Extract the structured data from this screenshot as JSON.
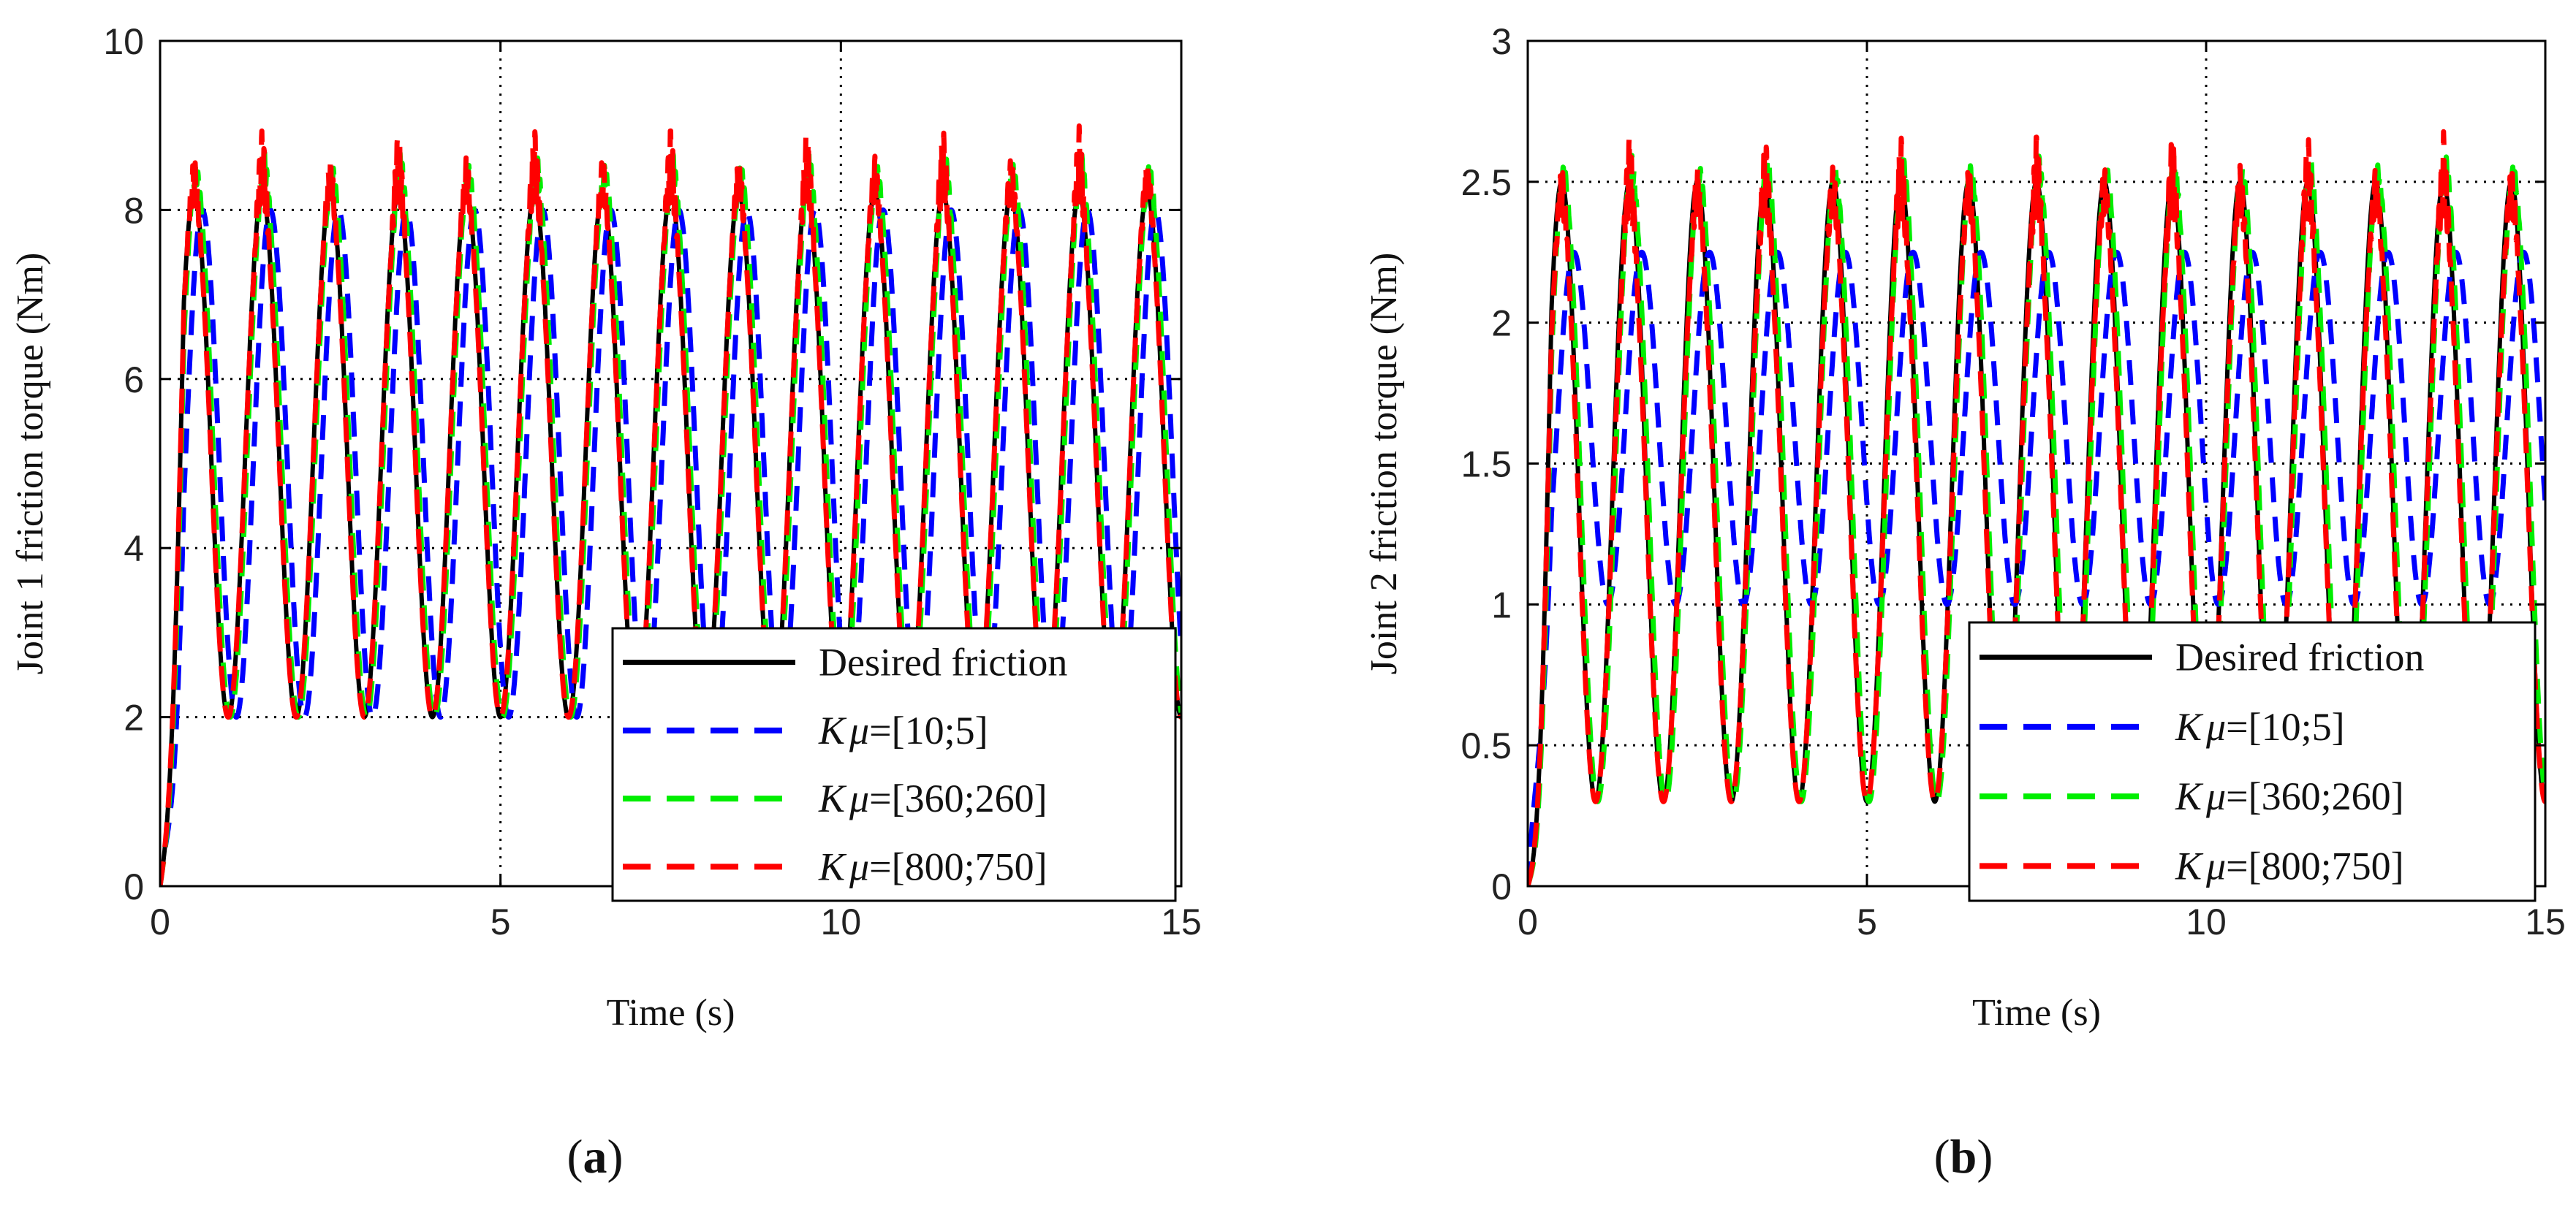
{
  "chart_data": [
    {
      "type": "line",
      "panel": "a",
      "xlabel": "Time (s)",
      "ylabel": "Joint 1 friction torque (Nm)",
      "xlim": [
        0,
        15
      ],
      "ylim": [
        0,
        10
      ],
      "xticks": [
        "0",
        "5",
        "10",
        "15"
      ],
      "yticks": [
        "0",
        "2",
        "4",
        "6",
        "8",
        "10"
      ],
      "xtick_values": [
        0,
        5,
        10,
        15
      ],
      "ytick_values": [
        0,
        2,
        4,
        6,
        8,
        10
      ],
      "grid": "dotted",
      "legend_position": "bottom-right",
      "signal": {
        "period_s": 1.0,
        "base": 2.0,
        "peak": 8.2
      },
      "series": [
        {
          "name": "Desired friction",
          "prefix": "",
          "value": "Desired friction",
          "color": "#000000",
          "dash": "solid",
          "peak": 8.2,
          "phase_shift_s": 0.0,
          "overshoot": 0.0
        },
        {
          "name": "Kμ=[10;5]",
          "prefix": "K",
          "mu": "μ",
          "value": "=[10;5]",
          "color": "#0000ff",
          "dash": "dashed",
          "peak": 8.0,
          "phase_shift_s": 0.12,
          "overshoot": 0.0
        },
        {
          "name": "Kμ=[360;260]",
          "prefix": "K",
          "mu": "μ",
          "value": "=[360;260]",
          "color": "#00ee00",
          "dash": "dashed",
          "peak": 8.3,
          "phase_shift_s": 0.03,
          "overshoot": 0.4
        },
        {
          "name": "Kμ=[800;750]",
          "prefix": "K",
          "mu": "μ",
          "value": "=[800;750]",
          "color": "#ff0000",
          "dash": "dashed",
          "peak": 8.1,
          "phase_shift_s": 0.0,
          "overshoot": 0.9
        }
      ]
    },
    {
      "type": "line",
      "panel": "b",
      "xlabel": "Time (s)",
      "ylabel": "Joint 2 friction torque (Nm)",
      "xlim": [
        0,
        15
      ],
      "ylim": [
        0,
        3
      ],
      "xticks": [
        "0",
        "5",
        "10",
        "15"
      ],
      "yticks": [
        "0",
        "0.5",
        "1",
        "1.5",
        "2",
        "2.5",
        "3"
      ],
      "xtick_values": [
        0,
        5,
        10,
        15
      ],
      "ytick_values": [
        0,
        0.5,
        1,
        1.5,
        2,
        2.5,
        3
      ],
      "grid": "dotted",
      "legend_position": "bottom-right",
      "signal": {
        "period_s": 1.0,
        "base": 0.3,
        "peak": 2.5
      },
      "series": [
        {
          "name": "Desired friction",
          "prefix": "",
          "value": "Desired friction",
          "color": "#000000",
          "dash": "solid",
          "peak": 2.5,
          "phase_shift_s": 0.0,
          "overshoot": 0.0
        },
        {
          "name": "Kμ=[10;5]",
          "prefix": "K",
          "mu": "μ",
          "value": "=[10;5]",
          "color": "#0000ff",
          "dash": "dashed",
          "peak": 2.25,
          "phase_shift_s": 0.18,
          "overshoot": 0.0,
          "base": 1.0
        },
        {
          "name": "Kμ=[360;260]",
          "prefix": "K",
          "mu": "μ",
          "value": "=[360;260]",
          "color": "#00ee00",
          "dash": "dashed",
          "peak": 2.5,
          "phase_shift_s": 0.03,
          "overshoot": 0.1
        },
        {
          "name": "Kμ=[800;750]",
          "prefix": "K",
          "mu": "μ",
          "value": "=[800;750]",
          "color": "#ff0000",
          "dash": "dashed",
          "peak": 2.38,
          "phase_shift_s": 0.0,
          "overshoot": 0.3
        }
      ]
    }
  ],
  "captions": {
    "a": "a",
    "b": "b",
    "open": "(",
    "close": ")"
  }
}
